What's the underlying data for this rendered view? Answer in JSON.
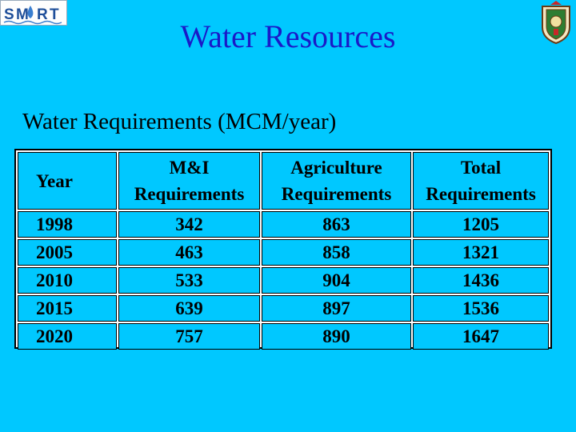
{
  "logo": {
    "letters": [
      "S",
      "M",
      "R",
      "T"
    ]
  },
  "header": {
    "title": "Water Resources",
    "subtitle": "Water Requirements (MCM/year)"
  },
  "table": {
    "columns": [
      {
        "line1": "Year",
        "line2": ""
      },
      {
        "line1": "M&I",
        "line2": "Requirements"
      },
      {
        "line1": "Agriculture",
        "line2": "Requirements"
      },
      {
        "line1": "Total",
        "line2": "Requirements"
      }
    ],
    "rows": [
      {
        "year": "1998",
        "mi": "342",
        "agri": "863",
        "total": "1205"
      },
      {
        "year": "2005",
        "mi": "463",
        "agri": "858",
        "total": "1321"
      },
      {
        "year": "2010",
        "mi": "533",
        "agri": "904",
        "total": "1436"
      },
      {
        "year": "2015",
        "mi": "639",
        "agri": "897",
        "total": "1536"
      },
      {
        "year": "2020",
        "mi": "757",
        "agri": "890",
        "total": "1647"
      }
    ]
  },
  "colors": {
    "background": "#00c8ff",
    "title": "#1a1ac8",
    "table_border": "#000000"
  }
}
